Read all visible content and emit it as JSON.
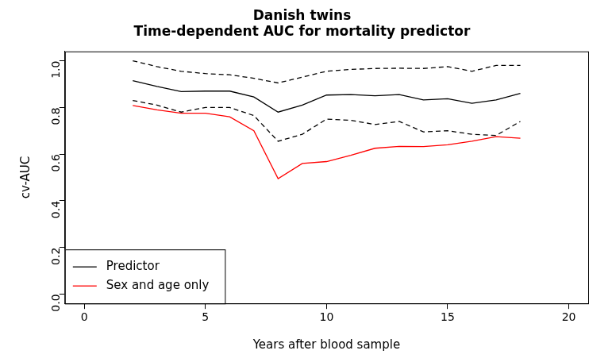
{
  "chart_data": {
    "type": "line",
    "title": [
      "Danish twins",
      "Time-dependent AUC for mortality predictor"
    ],
    "x_label": "Years after blood sample",
    "y_label": "cv-AUC",
    "x": [
      2,
      3,
      4,
      5,
      6,
      7,
      8,
      9,
      10,
      11,
      12,
      13,
      14,
      15,
      16,
      17,
      18
    ],
    "series": [
      {
        "name": "Predictor",
        "color": "#000000",
        "line_style": "solid",
        "values": [
          0.915,
          0.89,
          0.868,
          0.87,
          0.87,
          0.845,
          0.78,
          0.81,
          0.853,
          0.855,
          0.85,
          0.855,
          0.832,
          0.837,
          0.818,
          0.832,
          0.86
        ]
      },
      {
        "color": "#000000",
        "line_style": "dashed",
        "values": [
          1.0,
          0.975,
          0.955,
          0.945,
          0.94,
          0.925,
          0.905,
          0.93,
          0.955,
          0.963,
          0.967,
          0.968,
          0.967,
          0.975,
          0.955,
          0.98,
          0.98
        ]
      },
      {
        "color": "#000000",
        "line_style": "dashed",
        "values": [
          0.83,
          0.81,
          0.78,
          0.8,
          0.8,
          0.765,
          0.655,
          0.685,
          0.75,
          0.745,
          0.727,
          0.74,
          0.695,
          0.7,
          0.685,
          0.68,
          0.74
        ]
      },
      {
        "name": "Sex and age only",
        "color": "#ff0000",
        "line_style": "solid",
        "values": [
          0.808,
          0.79,
          0.775,
          0.775,
          0.76,
          0.7,
          0.495,
          0.56,
          0.568,
          0.595,
          0.625,
          0.633,
          0.632,
          0.64,
          0.655,
          0.675,
          0.668
        ]
      }
    ],
    "xlim": [
      -0.8,
      20.8
    ],
    "xticks": [
      0,
      5,
      10,
      15,
      20
    ],
    "ylim": [
      -0.04,
      1.04
    ],
    "yticks": [
      {
        "value": 0,
        "label": "0.0"
      },
      0.2,
      0.4,
      0.6,
      0.8,
      {
        "value": 1,
        "label": "1.0"
      }
    ],
    "grid": false,
    "legend": "bottom-left"
  }
}
